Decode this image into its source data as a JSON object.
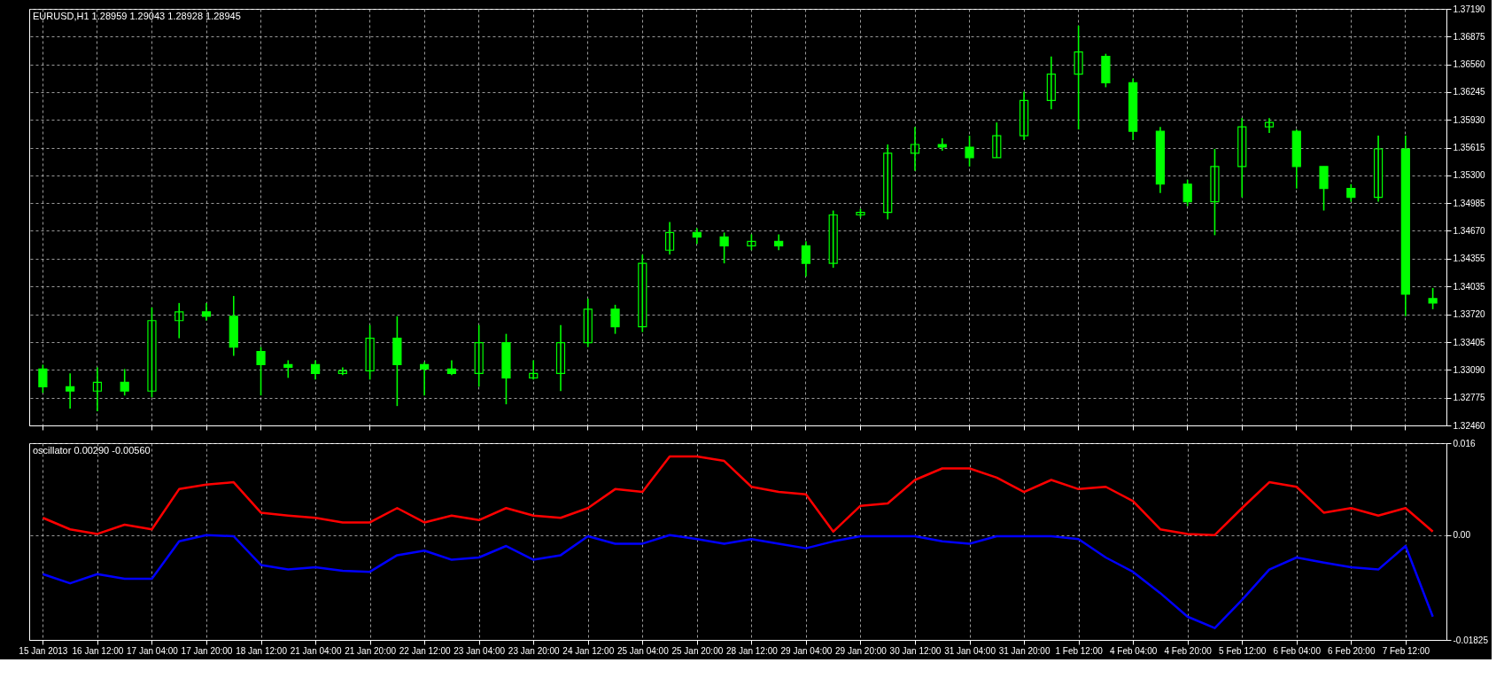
{
  "chart_data": [
    {
      "type": "candlestick",
      "title": "EURUSD,H1  1.28959 1.29043 1.28928 1.28945",
      "color": "#00ff00",
      "grid": true,
      "tick_labels": "y",
      "categories": [
        null,
        null,
        null,
        null,
        null,
        null,
        null,
        null,
        null,
        null,
        null,
        null,
        null,
        null,
        null,
        null,
        null,
        null,
        null,
        null,
        null,
        null,
        null,
        null,
        null,
        null,
        null,
        null,
        null,
        null,
        null,
        null,
        null,
        null,
        null,
        null,
        null,
        null,
        null,
        null,
        null,
        null,
        null,
        null,
        null,
        null,
        null,
        null,
        null,
        null,
        null,
        null
      ],
      "ohlc": [
        [
          1.331,
          1.3315,
          1.3283,
          1.329
        ],
        [
          1.329,
          1.3305,
          1.3265,
          1.3285
        ],
        [
          1.3285,
          1.3312,
          1.3262,
          1.3295
        ],
        [
          1.3295,
          1.331,
          1.328,
          1.3285
        ],
        [
          1.3285,
          1.338,
          1.3278,
          1.3365
        ],
        [
          1.3365,
          1.3385,
          1.3345,
          1.3375
        ],
        [
          1.3375,
          1.3385,
          1.3365,
          1.337
        ],
        [
          1.337,
          1.3393,
          1.3325,
          1.3335
        ],
        [
          1.333,
          1.3335,
          1.328,
          1.3315
        ],
        [
          1.3315,
          1.332,
          1.33,
          1.3312
        ],
        [
          1.3315,
          1.332,
          1.3298,
          1.3305
        ],
        [
          1.3305,
          1.3312,
          1.3303,
          1.3308
        ],
        [
          1.3308,
          1.336,
          1.3298,
          1.3345
        ],
        [
          1.3345,
          1.337,
          1.3268,
          1.3315
        ],
        [
          1.3315,
          1.3318,
          1.328,
          1.331
        ],
        [
          1.331,
          1.332,
          1.3303,
          1.3305
        ],
        [
          1.3305,
          1.336,
          1.329,
          1.334
        ],
        [
          1.334,
          1.335,
          1.327,
          1.33
        ],
        [
          1.33,
          1.332,
          1.3298,
          1.3305
        ],
        [
          1.3305,
          1.336,
          1.3285,
          1.334
        ],
        [
          1.334,
          1.339,
          1.3335,
          1.3378
        ],
        [
          1.3378,
          1.3383,
          1.335,
          1.3358
        ],
        [
          1.3358,
          1.344,
          1.3352,
          1.343
        ],
        [
          1.3445,
          1.3477,
          1.344,
          1.3465
        ],
        [
          1.3465,
          1.347,
          1.3452,
          1.346
        ],
        [
          1.346,
          1.3465,
          1.343,
          1.345
        ],
        [
          1.345,
          1.3463,
          1.3445,
          1.3455
        ],
        [
          1.3455,
          1.3463,
          1.3445,
          1.345
        ],
        [
          1.345,
          1.3455,
          1.3415,
          1.343
        ],
        [
          1.343,
          1.349,
          1.3425,
          1.3485
        ],
        [
          1.3485,
          1.3492,
          1.3482,
          1.3488
        ],
        [
          1.3488,
          1.3565,
          1.348,
          1.3555
        ],
        [
          1.3555,
          1.3585,
          1.3535,
          1.3565
        ],
        [
          1.3565,
          1.3572,
          1.3558,
          1.3562
        ],
        [
          1.3562,
          1.3575,
          1.354,
          1.355
        ],
        [
          1.355,
          1.359,
          1.355,
          1.3575
        ],
        [
          1.3575,
          1.3625,
          1.357,
          1.3615
        ],
        [
          1.3615,
          1.3665,
          1.3605,
          1.3645
        ],
        [
          1.3645,
          1.37,
          1.3582,
          1.367
        ],
        [
          1.3665,
          1.3668,
          1.363,
          1.3635
        ],
        [
          1.3635,
          1.364,
          1.357,
          1.358
        ],
        [
          1.358,
          1.3585,
          1.351,
          1.352
        ],
        [
          1.352,
          1.3525,
          1.3495,
          1.35
        ],
        [
          1.35,
          1.356,
          1.3462,
          1.354
        ],
        [
          1.354,
          1.3595,
          1.3505,
          1.3585
        ],
        [
          1.3585,
          1.3595,
          1.3578,
          1.359
        ],
        [
          1.358,
          1.3582,
          1.3515,
          1.354
        ],
        [
          1.354,
          1.354,
          1.349,
          1.3515
        ],
        [
          1.3515,
          1.352,
          1.35,
          1.3505
        ],
        [
          1.3505,
          1.3575,
          1.35,
          1.356
        ],
        [
          1.356,
          1.3575,
          1.337,
          1.3395
        ],
        [
          1.339,
          1.3402,
          1.3378,
          1.3385
        ]
      ],
      "ylim": [
        1.3246,
        1.3719
      ],
      "yticks": [
        {
          "value": 1.3246,
          "label": "1.32460"
        },
        {
          "value": 1.32775,
          "label": "1.32775"
        },
        {
          "value": 1.3309,
          "label": "1.33090"
        },
        {
          "value": 1.33405,
          "label": "1.33405"
        },
        {
          "value": 1.3372,
          "label": "1.33720"
        },
        {
          "value": 1.34035,
          "label": "1.34035"
        },
        {
          "value": 1.34355,
          "label": "1.34355"
        },
        {
          "value": 1.3467,
          "label": "1.34670"
        },
        {
          "value": 1.34985,
          "label": "1.34985"
        },
        {
          "value": 1.353,
          "label": "1.35300"
        },
        {
          "value": 1.35615,
          "label": "1.35615"
        },
        {
          "value": 1.3593,
          "label": "1.35930"
        },
        {
          "value": 1.36245,
          "label": "1.36245"
        },
        {
          "value": 1.3656,
          "label": "1.36560"
        },
        {
          "value": 1.36875,
          "label": "1.36875"
        },
        {
          "value": 1.3719,
          "label": "1.37190"
        }
      ]
    },
    {
      "type": "line",
      "title": "oscillator 0.00290 -0.00560",
      "grid": true,
      "categories": [
        "15 Jan 2013",
        null,
        "16 Jan 12:00",
        null,
        "17 Jan 04:00",
        null,
        "17 Jan 20:00",
        null,
        "18 Jan 12:00",
        null,
        "21 Jan 04:00",
        null,
        "21 Jan 20:00",
        null,
        "22 Jan 12:00",
        null,
        "23 Jan 04:00",
        null,
        "23 Jan 20:00",
        null,
        "24 Jan 12:00",
        null,
        "25 Jan 04:00",
        null,
        "25 Jan 20:00",
        null,
        "28 Jan 12:00",
        null,
        "29 Jan 04:00",
        null,
        "29 Jan 20:00",
        null,
        "30 Jan 12:00",
        null,
        "31 Jan 04:00",
        null,
        "31 Jan 20:00",
        null,
        "1 Feb 12:00",
        null,
        "4 Feb 04:00",
        null,
        "4 Feb 20:00",
        null,
        "5 Feb 12:00",
        null,
        "6 Feb 04:00",
        null,
        "6 Feb 20:00",
        null,
        "7 Feb 12:00",
        null
      ],
      "series": [
        {
          "color": "#ff0000",
          "values": [
            0.003,
            0.001,
            0.0002,
            0.0018,
            0.001,
            0.008,
            0.0088,
            0.0092,
            0.0039,
            0.0034,
            0.003,
            0.0022,
            0.0022,
            0.0047,
            0.0022,
            0.0034,
            0.0026,
            0.0047,
            0.0034,
            0.003,
            0.0047,
            0.008,
            0.0075,
            0.0137,
            0.0137,
            0.0129,
            0.0084,
            0.0075,
            0.0071,
            0.0006,
            0.0051,
            0.0055,
            0.0096,
            0.0116,
            0.0116,
            0.01,
            0.0075,
            0.0096,
            0.008,
            0.0084,
            0.0059,
            0.001,
            0.0002,
            0.0,
            0.0047,
            0.0092,
            0.0084,
            0.0039,
            0.0047,
            0.0034,
            0.0047,
            0.0006
          ]
        },
        {
          "color": "#0000ff",
          "values": [
            -0.0068,
            -0.0084,
            -0.0068,
            -0.0076,
            -0.0076,
            -0.0011,
            0.0,
            -0.0002,
            -0.0052,
            -0.006,
            -0.0056,
            -0.0062,
            -0.0064,
            -0.0035,
            -0.0027,
            -0.0043,
            -0.0039,
            -0.0019,
            -0.0043,
            -0.0035,
            -0.0002,
            -0.0015,
            -0.0015,
            0.0,
            -0.0007,
            -0.0015,
            -0.0007,
            -0.0015,
            -0.0023,
            -0.0011,
            -0.0002,
            -0.0002,
            -0.0002,
            -0.0011,
            -0.0015,
            -0.0002,
            -0.0002,
            -0.0002,
            -0.0007,
            -0.0039,
            -0.0064,
            -0.0101,
            -0.0142,
            -0.0162,
            -0.0113,
            -0.006,
            -0.0039,
            -0.0048,
            -0.0056,
            -0.006,
            -0.0019,
            -0.0142
          ]
        }
      ],
      "ylim": [
        -0.01825,
        0.016
      ],
      "yticks": [
        {
          "value": -0.01825,
          "label": "-0.01825"
        },
        {
          "value": 0,
          "label": "0.00"
        },
        0.016
      ]
    }
  ]
}
